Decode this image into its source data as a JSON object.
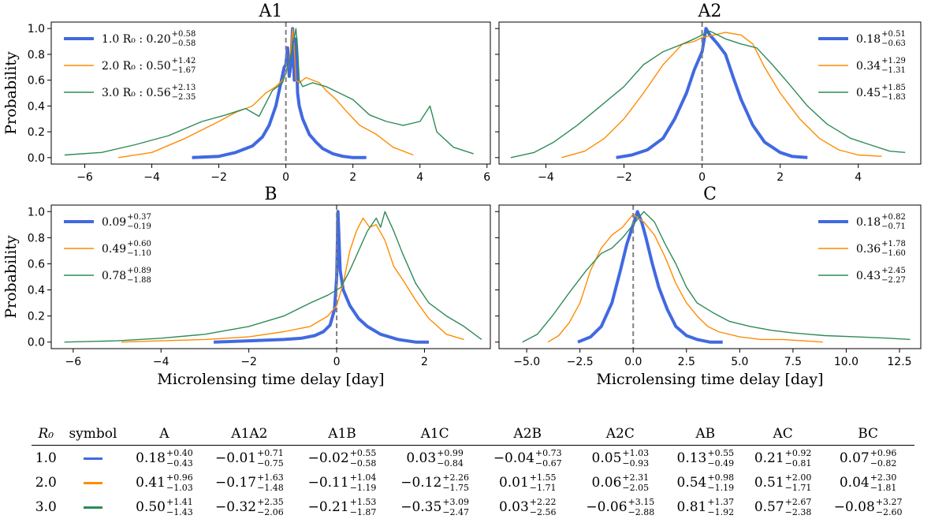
{
  "chart_data": [
    {
      "type": "line",
      "title": "A1",
      "xlabel": "",
      "ylabel": "Probability",
      "xlim": [
        -7,
        6.1
      ],
      "ylim": [
        -0.05,
        1.05
      ],
      "xticks": [
        -6,
        -4,
        -2,
        0,
        2,
        4,
        6
      ],
      "xtick_labels": [
        "−6",
        "−4",
        "−2",
        "0",
        "2",
        "4",
        "6"
      ],
      "yticks": [
        0,
        0.2,
        0.4,
        0.6,
        0.8,
        1.0
      ],
      "ytick_labels": [
        "0.0",
        "0.2",
        "0.4",
        "0.6",
        "0.8",
        "1.0"
      ],
      "vline": 0,
      "legend_loc": "upper-left",
      "series": [
        {
          "name": "1.0 R₀",
          "color": "#4169e1",
          "legend_label": "1.0 R₀ : 0.20",
          "err_up": "+0.58",
          "err_down": "−0.58",
          "x": [
            -2.8,
            -2.0,
            -1.5,
            -1.0,
            -0.7,
            -0.5,
            -0.3,
            -0.15,
            -0.05,
            0.0,
            0.05,
            0.1,
            0.15,
            0.2,
            0.25,
            0.3,
            0.35,
            0.4,
            0.5,
            0.7,
            0.9,
            1.1,
            1.4,
            1.7,
            2.0,
            2.4
          ],
          "y": [
            0.0,
            0.01,
            0.04,
            0.09,
            0.16,
            0.25,
            0.4,
            0.58,
            0.7,
            0.72,
            0.85,
            0.63,
            0.72,
            1.0,
            0.6,
            0.92,
            0.5,
            0.4,
            0.3,
            0.18,
            0.12,
            0.07,
            0.03,
            0.01,
            0.0,
            0.0
          ]
        },
        {
          "name": "2.0 R₀",
          "color": "#ff8c00",
          "legend_label": "2.0 R₀ : 0.50",
          "err_up": "+1.42",
          "err_down": "−1.67",
          "x": [
            -5.0,
            -4.0,
            -3.0,
            -2.0,
            -1.5,
            -1.0,
            -0.6,
            -0.3,
            -0.1,
            0.0,
            0.1,
            0.15,
            0.2,
            0.25,
            0.3,
            0.4,
            0.6,
            0.8,
            1.0,
            1.2,
            1.5,
            1.8,
            2.2,
            2.7,
            3.2,
            3.8
          ],
          "y": [
            0.0,
            0.04,
            0.15,
            0.28,
            0.35,
            0.4,
            0.5,
            0.55,
            0.6,
            0.65,
            0.75,
            0.85,
            1.0,
            0.85,
            0.6,
            0.58,
            0.62,
            0.6,
            0.58,
            0.52,
            0.45,
            0.36,
            0.25,
            0.18,
            0.08,
            0.02
          ]
        },
        {
          "name": "3.0 R₀",
          "color": "#2e8b57",
          "legend_label": "3.0 R₀ : 0.56",
          "err_up": "+2.13",
          "err_down": "−2.35",
          "x": [
            -6.6,
            -5.5,
            -4.5,
            -3.5,
            -2.5,
            -1.8,
            -1.2,
            -0.8,
            -0.4,
            -0.1,
            0.1,
            0.2,
            0.3,
            0.35,
            0.4,
            0.5,
            0.8,
            1.2,
            1.6,
            2.0,
            2.5,
            3.0,
            3.5,
            4.0,
            4.3,
            4.5,
            5.0,
            5.6
          ],
          "y": [
            0.02,
            0.04,
            0.1,
            0.17,
            0.28,
            0.33,
            0.38,
            0.32,
            0.52,
            0.58,
            0.75,
            0.85,
            1.0,
            0.85,
            0.6,
            0.55,
            0.58,
            0.55,
            0.5,
            0.45,
            0.33,
            0.28,
            0.25,
            0.28,
            0.4,
            0.2,
            0.08,
            0.03
          ]
        }
      ]
    },
    {
      "type": "line",
      "title": "A2",
      "xlabel": "",
      "ylabel": "",
      "xlim": [
        -5.2,
        5.6
      ],
      "ylim": [
        -0.05,
        1.05
      ],
      "xticks": [
        -4,
        -2,
        0,
        2,
        4
      ],
      "xtick_labels": [
        "−4",
        "−2",
        "0",
        "2",
        "4"
      ],
      "yticks": [
        0,
        0.2,
        0.4,
        0.6,
        0.8,
        1.0
      ],
      "ytick_labels": [],
      "vline": 0,
      "legend_loc": "upper-right",
      "series": [
        {
          "name": "1.0 R₀",
          "color": "#4169e1",
          "legend_label": "0.18",
          "err_up": "+0.51",
          "err_down": "−0.63",
          "x": [
            -2.2,
            -1.8,
            -1.4,
            -1.0,
            -0.7,
            -0.4,
            -0.2,
            0.0,
            0.1,
            0.2,
            0.4,
            0.6,
            0.8,
            1.0,
            1.3,
            1.6,
            2.0,
            2.3,
            2.7
          ],
          "y": [
            0.0,
            0.02,
            0.06,
            0.15,
            0.3,
            0.5,
            0.68,
            0.82,
            1.0,
            0.95,
            0.88,
            0.8,
            0.62,
            0.45,
            0.25,
            0.12,
            0.04,
            0.01,
            0.0
          ]
        },
        {
          "name": "2.0 R₀",
          "color": "#ff8c00",
          "legend_label": "0.34",
          "err_up": "+1.29",
          "err_down": "−1.31",
          "x": [
            -3.6,
            -3.0,
            -2.5,
            -2.0,
            -1.5,
            -1.0,
            -0.5,
            -0.2,
            0.0,
            0.3,
            0.6,
            1.0,
            1.3,
            1.6,
            2.0,
            2.5,
            3.0,
            3.5,
            4.0,
            4.6
          ],
          "y": [
            0.0,
            0.05,
            0.15,
            0.3,
            0.5,
            0.72,
            0.88,
            0.9,
            0.93,
            0.95,
            0.97,
            0.95,
            0.88,
            0.7,
            0.5,
            0.3,
            0.15,
            0.06,
            0.02,
            0.01
          ]
        },
        {
          "name": "3.0 R₀",
          "color": "#2e8b57",
          "legend_label": "0.45",
          "err_up": "+1.85",
          "err_down": "−1.83",
          "x": [
            -4.9,
            -4.3,
            -3.8,
            -3.2,
            -2.6,
            -2.0,
            -1.5,
            -1.0,
            -0.5,
            -0.2,
            0.2,
            0.6,
            1.0,
            1.4,
            1.8,
            2.2,
            2.7,
            3.2,
            3.8,
            4.3,
            4.8,
            5.2
          ],
          "y": [
            0.0,
            0.04,
            0.12,
            0.25,
            0.4,
            0.55,
            0.72,
            0.82,
            0.88,
            0.92,
            0.98,
            0.92,
            0.88,
            0.85,
            0.72,
            0.58,
            0.4,
            0.26,
            0.15,
            0.1,
            0.05,
            0.04
          ]
        }
      ]
    },
    {
      "type": "line",
      "title": "B",
      "xlabel": "Microlensing time delay  [day]",
      "ylabel": "Probability",
      "xlim": [
        -6.5,
        3.5
      ],
      "ylim": [
        -0.05,
        1.05
      ],
      "xticks": [
        -6,
        -4,
        -2,
        0,
        2
      ],
      "xtick_labels": [
        "−6",
        "−4",
        "−2",
        "0",
        "2"
      ],
      "yticks": [
        0,
        0.2,
        0.4,
        0.6,
        0.8,
        1.0
      ],
      "ytick_labels": [
        "0.0",
        "0.2",
        "0.4",
        "0.6",
        "0.8",
        "1.0"
      ],
      "vline": 0,
      "legend_loc": "upper-left",
      "series": [
        {
          "name": "1.0 R₀",
          "color": "#4169e1",
          "legend_label": "0.09",
          "err_up": "+0.37",
          "err_down": "−0.19",
          "x": [
            -2.8,
            -2.0,
            -1.2,
            -0.8,
            -0.5,
            -0.3,
            -0.15,
            -0.05,
            0.0,
            0.03,
            0.08,
            0.15,
            0.3,
            0.5,
            0.7,
            1.0,
            1.4,
            1.8,
            2.1
          ],
          "y": [
            0.0,
            0.01,
            0.02,
            0.03,
            0.05,
            0.08,
            0.13,
            0.25,
            0.5,
            1.0,
            0.55,
            0.4,
            0.28,
            0.18,
            0.12,
            0.06,
            0.02,
            0.0,
            0.0
          ]
        },
        {
          "name": "2.0 R₀",
          "color": "#ff8c00",
          "legend_label": "0.49",
          "err_up": "+0.60",
          "err_down": "−1.10",
          "x": [
            -4.9,
            -4.0,
            -3.0,
            -2.0,
            -1.2,
            -0.6,
            -0.2,
            0.0,
            0.15,
            0.3,
            0.45,
            0.6,
            0.75,
            0.9,
            1.1,
            1.3,
            1.5,
            1.8,
            2.1,
            2.5,
            2.9
          ],
          "y": [
            0.0,
            0.01,
            0.02,
            0.04,
            0.08,
            0.12,
            0.2,
            0.28,
            0.45,
            0.7,
            0.85,
            0.95,
            0.88,
            0.9,
            0.78,
            0.58,
            0.48,
            0.32,
            0.18,
            0.06,
            0.02
          ]
        },
        {
          "name": "3.0 R₀",
          "color": "#2e8b57",
          "legend_label": "0.78",
          "err_up": "+0.89",
          "err_down": "−1.88",
          "x": [
            -6.2,
            -5.0,
            -4.0,
            -3.0,
            -2.0,
            -1.2,
            -0.6,
            -0.2,
            0.1,
            0.3,
            0.5,
            0.7,
            0.9,
            1.0,
            1.1,
            1.3,
            1.5,
            1.8,
            2.1,
            2.5,
            2.9,
            3.3
          ],
          "y": [
            0.0,
            0.01,
            0.03,
            0.06,
            0.12,
            0.2,
            0.3,
            0.36,
            0.42,
            0.55,
            0.7,
            0.85,
            0.95,
            0.88,
            1.0,
            0.85,
            0.68,
            0.45,
            0.3,
            0.2,
            0.12,
            0.02
          ]
        }
      ]
    },
    {
      "type": "line",
      "title": "C",
      "xlabel": "Microlensing time delay  [day]",
      "ylabel": "",
      "xlim": [
        -6.3,
        13.5
      ],
      "ylim": [
        -0.05,
        1.05
      ],
      "xticks": [
        -5,
        -2.5,
        0,
        2.5,
        5,
        7.5,
        10,
        12.5
      ],
      "xtick_labels": [
        "−5.0",
        "−2.5",
        "0.0",
        "2.5",
        "5.0",
        "7.5",
        "10.0",
        "12.5"
      ],
      "yticks": [
        0,
        0.2,
        0.4,
        0.6,
        0.8,
        1.0
      ],
      "ytick_labels": [],
      "vline": 0,
      "legend_loc": "upper-right",
      "series": [
        {
          "name": "1.0 R₀",
          "color": "#4169e1",
          "legend_label": "0.18",
          "err_up": "+0.82",
          "err_down": "−0.71",
          "x": [
            -2.6,
            -2.0,
            -1.5,
            -1.0,
            -0.6,
            -0.3,
            0.0,
            0.2,
            0.4,
            0.6,
            0.9,
            1.2,
            1.6,
            2.0,
            2.5,
            3.0,
            3.6,
            4.2
          ],
          "y": [
            0.0,
            0.04,
            0.12,
            0.3,
            0.55,
            0.75,
            0.9,
            1.0,
            0.92,
            0.8,
            0.6,
            0.42,
            0.25,
            0.12,
            0.05,
            0.02,
            0.0,
            0.0
          ]
        },
        {
          "name": "2.0 R₀",
          "color": "#ff8c00",
          "legend_label": "0.36",
          "err_up": "+1.78",
          "err_down": "−1.60",
          "x": [
            -4.0,
            -3.5,
            -3.0,
            -2.5,
            -2.0,
            -1.5,
            -1.0,
            -0.5,
            0.0,
            0.5,
            1.0,
            1.5,
            2.0,
            2.5,
            3.0,
            3.5,
            4.0,
            5.0,
            6.0,
            7.0,
            8.0,
            8.9
          ],
          "y": [
            0.0,
            0.05,
            0.15,
            0.3,
            0.55,
            0.72,
            0.82,
            0.88,
            0.98,
            0.92,
            0.82,
            0.65,
            0.45,
            0.3,
            0.2,
            0.12,
            0.08,
            0.04,
            0.02,
            0.02,
            0.01,
            0.0
          ]
        },
        {
          "name": "3.0 R₀",
          "color": "#2e8b57",
          "legend_label": "0.43",
          "err_up": "+2.45",
          "err_down": "−2.27",
          "x": [
            -5.2,
            -4.5,
            -3.8,
            -3.0,
            -2.2,
            -1.5,
            -1.0,
            -0.5,
            0.0,
            0.5,
            1.0,
            1.5,
            2.0,
            2.5,
            3.0,
            3.8,
            4.5,
            5.5,
            6.5,
            7.5,
            9.0,
            10.5,
            12.0,
            13.0
          ],
          "y": [
            0.0,
            0.06,
            0.2,
            0.38,
            0.55,
            0.68,
            0.72,
            0.8,
            0.9,
            1.0,
            0.92,
            0.75,
            0.6,
            0.42,
            0.3,
            0.22,
            0.16,
            0.12,
            0.09,
            0.07,
            0.05,
            0.04,
            0.03,
            0.02
          ]
        }
      ]
    }
  ],
  "table": {
    "headers": [
      "R₀",
      "symbol",
      "A",
      "A1A2",
      "A1B",
      "A1C",
      "A2B",
      "A2C",
      "AB",
      "AC",
      "BC"
    ],
    "rows": [
      {
        "r0": "1.0",
        "color": "#4169e1",
        "cells": [
          {
            "v": "0.18",
            "up": "+0.40",
            "dn": "−0.43"
          },
          {
            "v": "−0.01",
            "up": "+0.71",
            "dn": "−0.75"
          },
          {
            "v": "−0.02",
            "up": "+0.55",
            "dn": "−0.58"
          },
          {
            "v": "0.03",
            "up": "+0.99",
            "dn": "−0.84"
          },
          {
            "v": "−0.04",
            "up": "+0.73",
            "dn": "−0.67"
          },
          {
            "v": "0.05",
            "up": "+1.03",
            "dn": "−0.93"
          },
          {
            "v": "0.13",
            "up": "+0.55",
            "dn": "−0.49"
          },
          {
            "v": "0.21",
            "up": "+0.92",
            "dn": "−0.81"
          },
          {
            "v": "0.07",
            "up": "+0.96",
            "dn": "−0.82"
          }
        ]
      },
      {
        "r0": "2.0",
        "color": "#ff8c00",
        "cells": [
          {
            "v": "0.41",
            "up": "+0.96",
            "dn": "−1.03"
          },
          {
            "v": "−0.17",
            "up": "+1.63",
            "dn": "−1.48"
          },
          {
            "v": "−0.11",
            "up": "+1.04",
            "dn": "−1.19"
          },
          {
            "v": "−0.12",
            "up": "+2.26",
            "dn": "−1.75"
          },
          {
            "v": "0.01",
            "up": "+1.55",
            "dn": "−1.71"
          },
          {
            "v": "0.06",
            "up": "+2.31",
            "dn": "−2.05"
          },
          {
            "v": "0.54",
            "up": "+0.98",
            "dn": "−1.19"
          },
          {
            "v": "0.51",
            "up": "+2.00",
            "dn": "−1.71"
          },
          {
            "v": "0.04",
            "up": "+2.30",
            "dn": "−1.81"
          }
        ]
      },
      {
        "r0": "3.0",
        "color": "#2e8b57",
        "cells": [
          {
            "v": "0.50",
            "up": "+1.41",
            "dn": "−1.43"
          },
          {
            "v": "−0.32",
            "up": "+2.35",
            "dn": "−2.06"
          },
          {
            "v": "−0.21",
            "up": "+1.53",
            "dn": "−1.87"
          },
          {
            "v": "−0.35",
            "up": "+3.09",
            "dn": "−2.47"
          },
          {
            "v": "0.03",
            "up": "+2.22",
            "dn": "−2.56"
          },
          {
            "v": "−0.06",
            "up": "+3.15",
            "dn": "−2.88"
          },
          {
            "v": "0.81",
            "up": "+1.37",
            "dn": "−1.92"
          },
          {
            "v": "0.57",
            "up": "+2.67",
            "dn": "−2.38"
          },
          {
            "v": "−0.08",
            "up": "+3.27",
            "dn": "−2.60"
          }
        ]
      }
    ]
  }
}
